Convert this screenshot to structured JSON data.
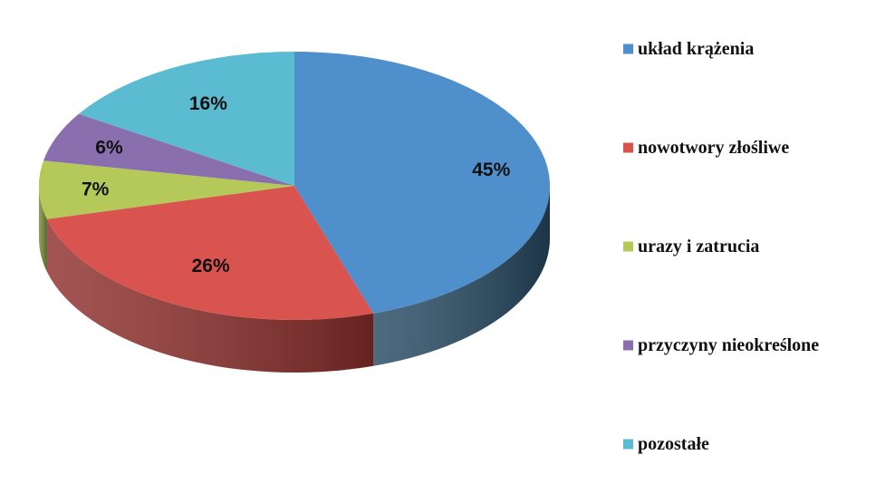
{
  "chart_data": {
    "type": "pie",
    "title": "",
    "style": "3d",
    "categories": [
      "układ krążenia",
      "nowotwory złośliwe",
      "urazy i zatrucia",
      "przyczyny nieokreślone",
      "pozostałe"
    ],
    "values": [
      45,
      26,
      7,
      6,
      16
    ],
    "data_labels": [
      "45%",
      "26%",
      "7%",
      "6%",
      "16%"
    ],
    "colors": [
      "#4F8FCB",
      "#D9534F",
      "#B5C85A",
      "#8A6FAE",
      "#5BBBD0"
    ],
    "side_colors": [
      "#264A63",
      "#8E2F2C",
      "#7A8A35",
      "#5A4775",
      "#2E7A8A"
    ],
    "legend_position": "right"
  }
}
